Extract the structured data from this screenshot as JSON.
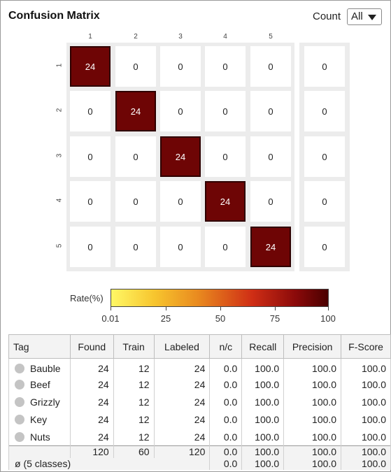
{
  "header": {
    "title": "Confusion Matrix",
    "count_label": "Count",
    "count_value": "All"
  },
  "matrix": {
    "labels": [
      "1",
      "2",
      "3",
      "4",
      "5"
    ],
    "rows": [
      [
        24,
        0,
        0,
        0,
        0
      ],
      [
        0,
        24,
        0,
        0,
        0
      ],
      [
        0,
        0,
        24,
        0,
        0
      ],
      [
        0,
        0,
        0,
        24,
        0
      ],
      [
        0,
        0,
        0,
        0,
        24
      ]
    ],
    "extra_column": [
      0,
      0,
      0,
      0,
      0
    ],
    "highlight_color": "#6e0505"
  },
  "legend": {
    "label": "Rate(%)",
    "ticks": [
      "0.01",
      "25",
      "50",
      "75",
      "100"
    ]
  },
  "table": {
    "headers": [
      "Tag",
      "Found",
      "Train",
      "Labeled",
      "n/c",
      "Recall",
      "Precision",
      "F-Score"
    ],
    "rows": [
      {
        "tag": "Bauble",
        "found": "24",
        "train": "12",
        "labeled": "24",
        "nc": "0.0",
        "recall": "100.0",
        "precision": "100.0",
        "fscore": "100.0"
      },
      {
        "tag": "Beef",
        "found": "24",
        "train": "12",
        "labeled": "24",
        "nc": "0.0",
        "recall": "100.0",
        "precision": "100.0",
        "fscore": "100.0"
      },
      {
        "tag": "Grizzly",
        "found": "24",
        "train": "12",
        "labeled": "24",
        "nc": "0.0",
        "recall": "100.0",
        "precision": "100.0",
        "fscore": "100.0"
      },
      {
        "tag": "Key",
        "found": "24",
        "train": "12",
        "labeled": "24",
        "nc": "0.0",
        "recall": "100.0",
        "precision": "100.0",
        "fscore": "100.0"
      },
      {
        "tag": "Nuts",
        "found": "24",
        "train": "12",
        "labeled": "24",
        "nc": "0.0",
        "recall": "100.0",
        "precision": "100.0",
        "fscore": "100.0"
      }
    ],
    "sum": {
      "found": "120",
      "train": "60",
      "labeled": "120",
      "nc": "0.0",
      "recall": "100.0",
      "precision": "100.0",
      "fscore": "100.0"
    },
    "average": {
      "label": "ø (5 classes)",
      "nc": "0.0",
      "recall": "100.0",
      "precision": "100.0",
      "fscore": "100.0"
    }
  }
}
